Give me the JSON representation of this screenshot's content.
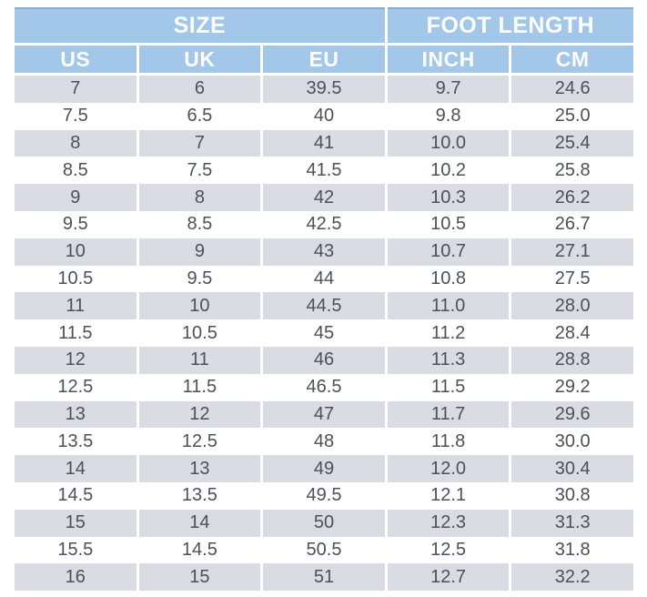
{
  "colors": {
    "page_bg": "#ffffff",
    "header_bg": "#a2c7e9",
    "header_text": "#fefefe",
    "header_top_border": "#8aabca",
    "stripe_bg": "#d9dce2",
    "data_text": "#4c5158"
  },
  "chart_data": {
    "type": "table",
    "group_headers": [
      {
        "label": "SIZE",
        "span": 3
      },
      {
        "label": "FOOT LENGTH",
        "span": 2
      }
    ],
    "columns": [
      "US",
      "UK",
      "EU",
      "INCH",
      "CM"
    ],
    "rows": [
      [
        "7",
        "6",
        "39.5",
        "9.7",
        "24.6"
      ],
      [
        "7.5",
        "6.5",
        "40",
        "9.8",
        "25.0"
      ],
      [
        "8",
        "7",
        "41",
        "10.0",
        "25.4"
      ],
      [
        "8.5",
        "7.5",
        "41.5",
        "10.2",
        "25.8"
      ],
      [
        "9",
        "8",
        "42",
        "10.3",
        "26.2"
      ],
      [
        "9.5",
        "8.5",
        "42.5",
        "10.5",
        "26.7"
      ],
      [
        "10",
        "9",
        "43",
        "10.7",
        "27.1"
      ],
      [
        "10.5",
        "9.5",
        "44",
        "10.8",
        "27.5"
      ],
      [
        "11",
        "10",
        "44.5",
        "11.0",
        "28.0"
      ],
      [
        "11.5",
        "10.5",
        "45",
        "11.2",
        "28.4"
      ],
      [
        "12",
        "11",
        "46",
        "11.3",
        "28.8"
      ],
      [
        "12.5",
        "11.5",
        "46.5",
        "11.5",
        "29.2"
      ],
      [
        "13",
        "12",
        "47",
        "11.7",
        "29.6"
      ],
      [
        "13.5",
        "12.5",
        "48",
        "11.8",
        "30.0"
      ],
      [
        "14",
        "13",
        "49",
        "12.0",
        "30.4"
      ],
      [
        "14.5",
        "13.5",
        "49.5",
        "12.1",
        "30.8"
      ],
      [
        "15",
        "14",
        "50",
        "12.3",
        "31.3"
      ],
      [
        "15.5",
        "14.5",
        "50.5",
        "12.5",
        "31.8"
      ],
      [
        "16",
        "15",
        "51",
        "12.7",
        "32.2"
      ]
    ]
  }
}
